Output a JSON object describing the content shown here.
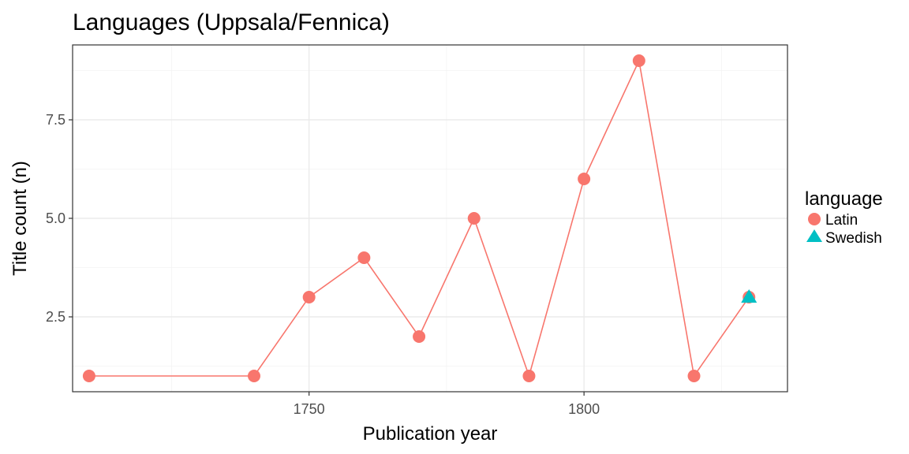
{
  "chart_data": {
    "type": "line",
    "title": "Languages (Uppsala/Fennica)",
    "xlabel": "Publication year",
    "ylabel": "Title count (n)",
    "xlim": [
      1707,
      1837
    ],
    "ylim": [
      0.6,
      9.4
    ],
    "x_ticks": [
      1750,
      1800
    ],
    "x_tick_labels": [
      "1750",
      "1800"
    ],
    "y_ticks": [
      2.5,
      5.0,
      7.5
    ],
    "y_tick_labels": [
      "2.5",
      "5.0",
      "7.5"
    ],
    "grid": true,
    "legend": {
      "title": "language",
      "position": "right"
    },
    "series": [
      {
        "name": "Latin",
        "marker": "circle",
        "color": "#F8766D",
        "x": [
          1710,
          1740,
          1750,
          1760,
          1770,
          1780,
          1790,
          1800,
          1810,
          1820,
          1830
        ],
        "y": [
          1,
          1,
          3,
          4,
          2,
          5,
          1,
          6,
          9,
          1,
          3
        ]
      },
      {
        "name": "Swedish",
        "marker": "triangle",
        "color": "#00BFC4",
        "x": [
          1830
        ],
        "y": [
          3
        ]
      }
    ]
  }
}
